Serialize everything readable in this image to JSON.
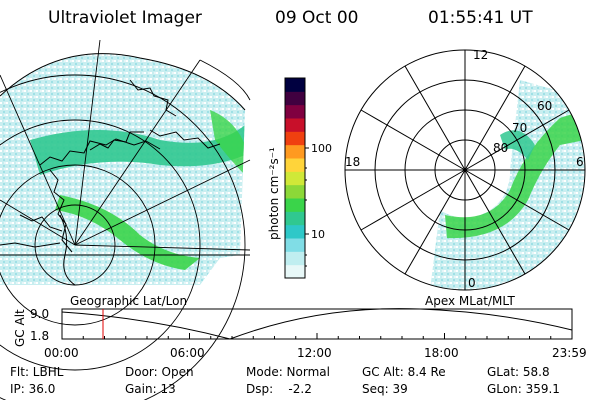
{
  "header": {
    "instrument": "Ultraviolet Imager",
    "date": "09 Oct 00",
    "time": "01:55:41 UT"
  },
  "colorbar": {
    "unit_label": "photon cm⁻²s⁻¹",
    "tick_100": "100",
    "tick_10": "10",
    "colors": [
      "#e8f8f8",
      "#c0eef0",
      "#80dde6",
      "#2ec8c8",
      "#30c890",
      "#3ad44a",
      "#8cd838",
      "#d0e838",
      "#ffd43a",
      "#ff9a20",
      "#f04010",
      "#c8102a",
      "#800040",
      "#400040",
      "#000040"
    ]
  },
  "polar_plot": {
    "lat_labels": [
      "60",
      "70",
      "80"
    ],
    "mlt_12": "12",
    "mlt_18": "18",
    "mlt_6": "6",
    "mlt_0": "0"
  },
  "alt_panel": {
    "geo_label": "Geographic Lat/Lon",
    "apex_label": "Apex MLat/MLT",
    "y_axis_label": "GC Alt",
    "y_top": "9.0",
    "y_bottom": "1.8",
    "x_ticks": [
      "00:00",
      "06:00",
      "12:00",
      "18:00",
      "23:59"
    ],
    "marker_hour": 1.93,
    "marker_color": "#e00000"
  },
  "info": {
    "row1": [
      "Flt: LBHL",
      "Door: Open",
      "Mode: Normal",
      "GC Alt: 8.4 Re",
      "GLat: 58.8"
    ],
    "row2": [
      "IP: 36.0",
      "Gain: 13",
      "Dsp:    -2.2",
      "Seq: 39",
      "GLon: 359.1"
    ]
  }
}
